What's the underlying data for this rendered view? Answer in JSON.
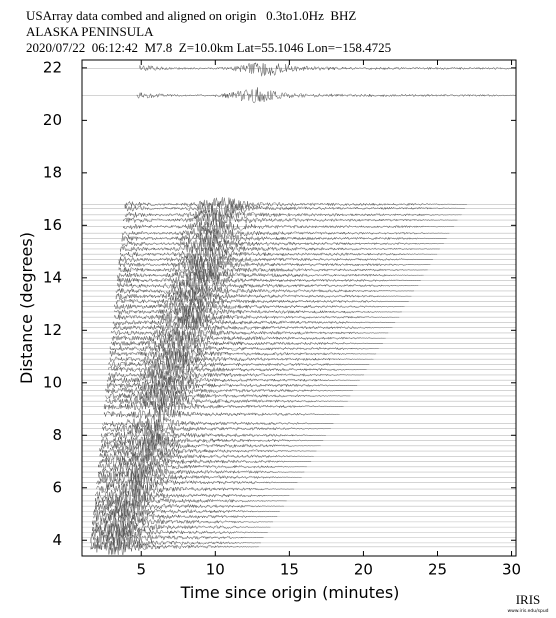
{
  "chart_data": {
    "type": "record-section",
    "title": "USArray data combed and aligned on origin   0.3to1.0Hz  BHZ",
    "subtitle": "ALASKA PENINSULA",
    "event": "2020/07/22  06:12:42  M7.8  Z=10.0km Lat=55.1046 Lon=−158.4725",
    "xlabel": "Time since origin (minutes)",
    "ylabel": "Distance (degrees)",
    "credit": "IRIS",
    "credit_url": "www.iris.edu/spud",
    "xlim": [
      1.0,
      30.3
    ],
    "ylim": [
      3.4,
      22.3
    ],
    "xticks": [
      5,
      10,
      15,
      20,
      25,
      30
    ],
    "yticks": [
      4,
      6,
      8,
      10,
      12,
      14,
      16,
      18,
      20,
      22
    ],
    "trace_color": "#555555",
    "baseline_color": "#bbbbbb",
    "distances": [
      21.98,
      20.95,
      16.8,
      16.65,
      16.4,
      16.2,
      15.95,
      15.7,
      15.5,
      15.3,
      15.1,
      14.9,
      14.7,
      14.5,
      14.3,
      14.1,
      13.9,
      13.7,
      13.5,
      13.3,
      13.1,
      12.9,
      12.7,
      12.5,
      12.3,
      12.1,
      11.9,
      11.7,
      11.5,
      11.3,
      11.1,
      10.9,
      10.7,
      10.5,
      10.3,
      10.1,
      9.9,
      9.7,
      9.5,
      9.3,
      9.1,
      8.8,
      8.45,
      8.25,
      8.0,
      7.8,
      7.6,
      7.4,
      7.2,
      7.0,
      6.8,
      6.6,
      6.4,
      6.2,
      5.95,
      5.7,
      5.5,
      5.3,
      5.1,
      4.9,
      4.7,
      4.5,
      4.3,
      4.1,
      3.9,
      3.75
    ],
    "onsets": [
      4.9,
      4.7,
      3.9,
      3.9,
      3.9,
      3.8,
      3.8,
      3.7,
      3.7,
      3.7,
      3.6,
      3.6,
      3.5,
      3.5,
      3.5,
      3.4,
      3.4,
      3.4,
      3.3,
      3.3,
      3.3,
      3.2,
      3.2,
      3.2,
      3.1,
      3.1,
      3.0,
      3.0,
      3.0,
      2.9,
      2.9,
      2.9,
      2.8,
      2.8,
      2.8,
      2.7,
      2.7,
      2.6,
      2.6,
      2.6,
      2.5,
      2.5,
      2.4,
      2.4,
      2.3,
      2.3,
      2.3,
      2.2,
      2.2,
      2.2,
      2.1,
      2.1,
      2.1,
      2.0,
      2.0,
      1.9,
      1.9,
      1.9,
      1.8,
      1.8,
      1.7,
      1.7,
      1.7,
      1.6,
      1.6,
      1.6
    ],
    "peaks": [
      13.1,
      12.5,
      10.2,
      10.2,
      10.0,
      9.9,
      9.8,
      9.6,
      9.5,
      9.4,
      9.3,
      9.2,
      9.1,
      9.0,
      8.9,
      8.8,
      8.6,
      8.5,
      8.4,
      8.3,
      8.2,
      8.1,
      8.0,
      7.9,
      7.8,
      7.7,
      7.5,
      7.4,
      7.3,
      7.2,
      7.1,
      7.0,
      6.9,
      6.8,
      6.7,
      6.6,
      6.4,
      6.3,
      6.2,
      6.1,
      6.0,
      5.8,
      5.6,
      5.5,
      5.4,
      5.3,
      5.2,
      5.1,
      5.0,
      4.9,
      4.7,
      4.6,
      4.5,
      4.4,
      4.3,
      4.1,
      4.0,
      3.9,
      3.8,
      3.7,
      3.6,
      3.5,
      3.4,
      3.3,
      3.1,
      3.1
    ]
  }
}
